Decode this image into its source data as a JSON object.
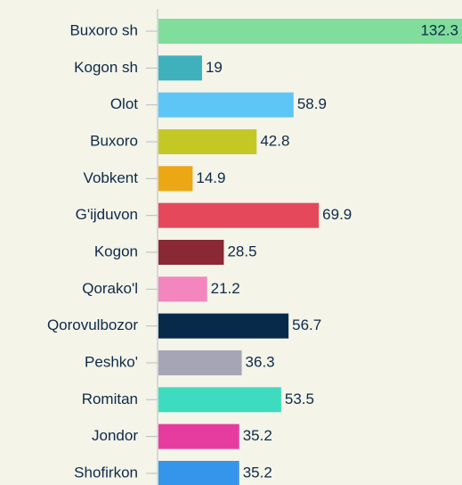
{
  "chart_data": {
    "type": "hbar",
    "categories": [
      "Buxoro sh",
      "Kogon sh",
      "Olot",
      "Buxoro",
      "Vobkent",
      "G'ijduvon",
      "Kogon",
      "Qorako'l",
      "Qorovulbozor",
      "Peshko'",
      "Romitan",
      "Jondor",
      "Shofirkon"
    ],
    "values": [
      132.3,
      19,
      58.9,
      42.8,
      14.9,
      69.9,
      28.5,
      21.2,
      56.7,
      36.3,
      53.5,
      35.2,
      35.2
    ],
    "colors": [
      "#80dd9b",
      "#3fb1bd",
      "#5ec6f6",
      "#c4c826",
      "#eba814",
      "#e4485a",
      "#8a2836",
      "#f386bf",
      "#072a4b",
      "#a6a5b6",
      "#3ddcc0",
      "#e63c9f",
      "#3595ea"
    ]
  }
}
